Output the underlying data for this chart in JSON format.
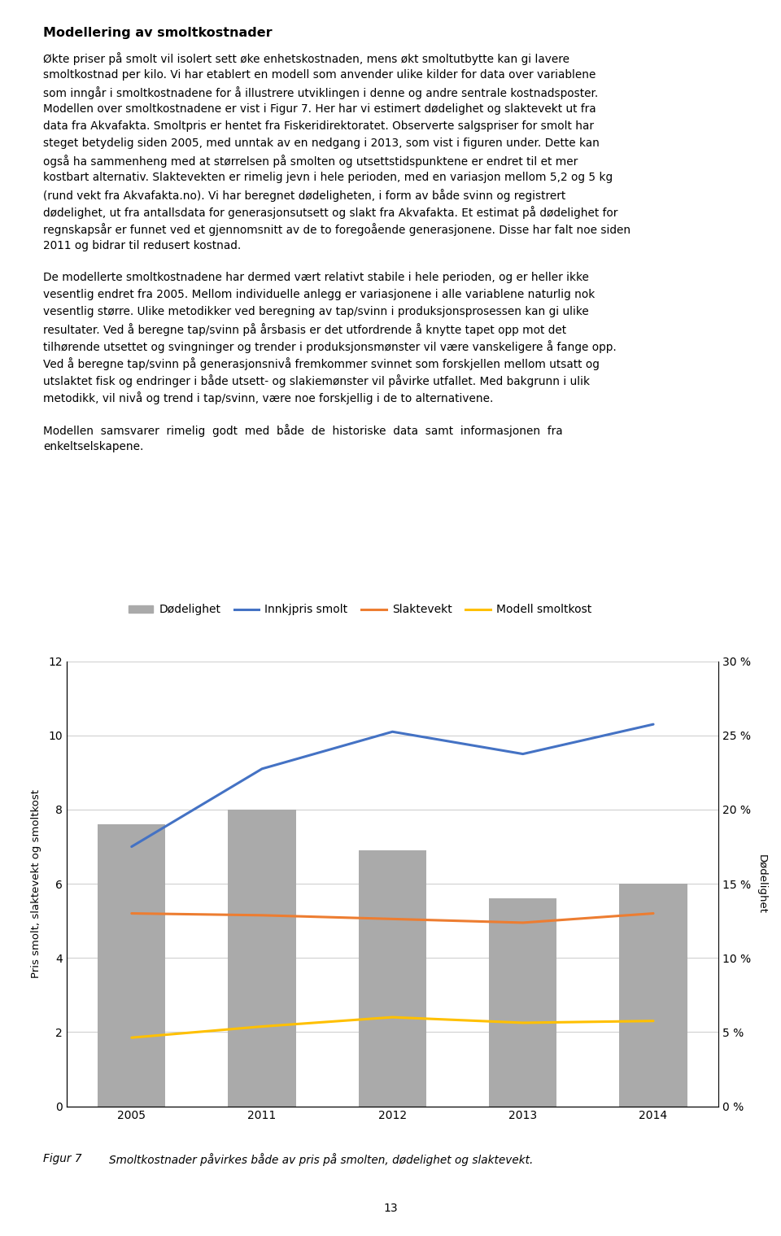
{
  "years": [
    2005,
    2011,
    2012,
    2013,
    2014
  ],
  "bar_values": [
    7.6,
    8.0,
    6.9,
    5.6,
    6.0
  ],
  "bar_color": "#AAAAAA",
  "innkjpris_smolt": [
    7.0,
    9.1,
    10.1,
    9.5,
    10.3
  ],
  "innkjpris_color": "#4472C4",
  "slaktevekt": [
    5.2,
    5.15,
    5.05,
    4.95,
    5.2
  ],
  "slaktevekt_color": "#ED7D31",
  "modell_smoltkost": [
    1.85,
    2.15,
    2.4,
    2.25,
    2.3
  ],
  "modell_color": "#FFC000",
  "ylabel_left": "Pris smolt, slaktevekt og smoltkost",
  "ylabel_right": "Dødelighet",
  "ylim_left": [
    0,
    12
  ],
  "ylim_right": [
    0,
    0.3
  ],
  "yticks_left": [
    0,
    2,
    4,
    6,
    8,
    10,
    12
  ],
  "yticks_right": [
    0.0,
    0.05,
    0.1,
    0.15,
    0.2,
    0.25,
    0.3
  ],
  "ytick_labels_right": [
    "0 %",
    "5 %",
    "10 %",
    "15 %",
    "20 %",
    "25 %",
    "30 %"
  ],
  "legend_labels": [
    "Dødelighet",
    "Innkjpris smolt",
    "Slaktevekt",
    "Modell smoltkost"
  ],
  "caption_label": "Figur 7",
  "caption_text": "Smoltkostnader påvirkes både av pris på smolten, dødelighet og slaktevekt.",
  "background_color": "#FFFFFF",
  "grid_color": "#D0D0D0",
  "page_number": "13",
  "title_line": "Modellering av smoltkostnader",
  "para1_lines": [
    "Økte priser på smolt vil isolert sett øke enhetskostnaden, mens økt smoltutbytte kan gi lavere",
    "smoltkostnad per kilo. Vi har etablert en modell som anvender ulike kilder for data over variablene",
    "som inngår i smoltkostnadene for å illustrere utviklingen i denne og andre sentrale kostnadsposter.",
    "Modellen over smoltkostnadene er vist i Figur 7. Her har vi estimert dødelighet og slaktevekt ut fra",
    "data fra Akvafakta. Smoltpris er hentet fra Fiskeridirektoratet. Observerte salgspriser for smolt har",
    "steget betydelig siden 2005, med unntak av en nedgang i 2013, som vist i figuren under. Dette kan",
    "også ha sammenheng med at størrelsen på smolten og utsettstidspunktene er endret til et mer",
    "kostbart alternativ. Slaktevekten er rimelig jevn i hele perioden, med en variasjon mellom 5,2 og 5 kg",
    "(rund vekt fra Akvafakta.no). Vi har beregnet dødeligheten, i form av både svinn og registrert",
    "dødelighet, ut fra antallsdata for generasjonsutsett og slakt fra Akvafakta. Et estimat på dødelighet for",
    "regnskapsår er funnet ved et gjennomsnitt av de to foregoående generasjonene. Disse har falt noe siden",
    "2011 og bidrar til redusert kostnad."
  ],
  "para2_lines": [
    "De modellerte smoltkostnadene har dermed vært relativt stabile i hele perioden, og er heller ikke",
    "vesentlig endret fra 2005. Mellom individuelle anlegg er variasjonene i alle variablene naturlig nok",
    "vesentlig større. Ulike metodikker ved beregning av tap/svinn i produksjonsprosessen kan gi ulike",
    "resultater. Ved å beregne tap/svinn på årsbasis er det utfordrende å knytte tapet opp mot det",
    "tilhørende utsettet og svingninger og trender i produksjonsmønster vil være vanskeligere å fange opp.",
    "Ved å beregne tap/svinn på generasjonsnivå fremkommer svinnet som forskjellen mellom utsatt og",
    "utslaktet fisk og endringer i både utsett- og slakiemønster vil påvirke utfallet. Med bakgrunn i ulik",
    "metodikk, vil nivå og trend i tap/svinn, være noe forskjellig i de to alternativene."
  ],
  "para3_lines": [
    "Modellen  samsvarer  rimelig  godt  med  både  de  historiske  data  samt  informasjonen  fra",
    "enkeltselskapene."
  ]
}
